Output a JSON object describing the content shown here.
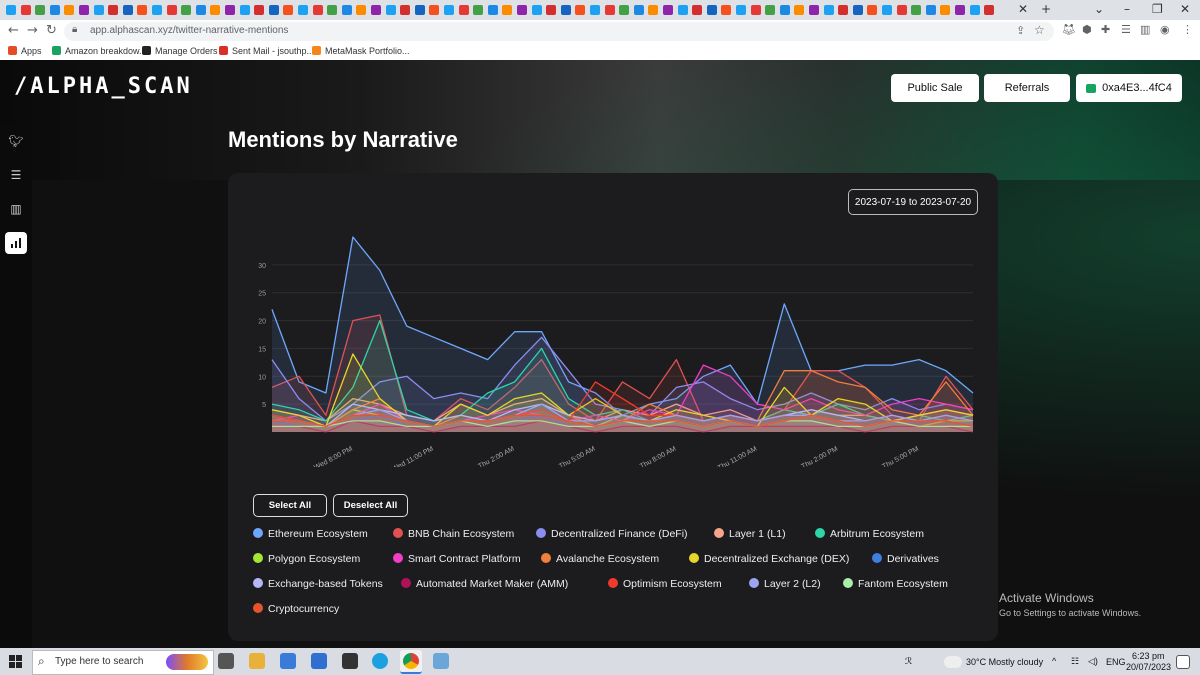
{
  "browser": {
    "url": "app.alphascan.xyz/twitter-narrative-mentions",
    "bookmarks": [
      {
        "label": "Apps",
        "color": "#e34c26"
      },
      {
        "label": "Amazon breakdow...",
        "color": "#1aa260"
      },
      {
        "label": "Manage Orders",
        "color": "#222222"
      },
      {
        "label": "Sent Mail - jsouthp...",
        "color": "#d93025"
      },
      {
        "label": "MetaMask Portfolio...",
        "color": "#f6851b"
      }
    ]
  },
  "header": {
    "logo": "/ALPHA_SCAN",
    "buttons": {
      "public_sale": "Public Sale",
      "referrals": "Referrals",
      "wallet": "0xa4E3...4fC4"
    }
  },
  "sidebar": {
    "icons": [
      "twitter-icon",
      "list-icon",
      "columns-icon",
      "bar-chart-icon"
    ]
  },
  "main": {
    "title": "Mentions by Narrative",
    "date_range": "2023-07-19 to 2023-07-20",
    "select_all": "Select All",
    "deselect_all": "Deselect All"
  },
  "chart_data": {
    "type": "area",
    "x": [
      "Wed 5:00 PM",
      "Wed 6:00 PM",
      "Wed 7:00 PM",
      "Wed 8:00 PM",
      "Wed 9:00 PM",
      "Wed 10:00 PM",
      "Wed 11:00 PM",
      "Thu 12:00 AM",
      "Thu 1:00 AM",
      "Thu 2:00 AM",
      "Thu 3:00 AM",
      "Thu 4:00 AM",
      "Thu 5:00 AM",
      "Thu 6:00 AM",
      "Thu 7:00 AM",
      "Thu 8:00 AM",
      "Thu 9:00 AM",
      "Thu 10:00 AM",
      "Thu 11:00 AM",
      "Thu 12:00 PM",
      "Thu 1:00 PM",
      "Thu 2:00 PM",
      "Thu 3:00 PM",
      "Thu 4:00 PM",
      "Thu 5:00 PM",
      "Thu 6:00 PM",
      "Thu 7:00 PM"
    ],
    "x_ticks": [
      "Wed 8:00 PM",
      "Wed 11:00 PM",
      "Thu 2:00 AM",
      "Thu 5:00 AM",
      "Thu 8:00 AM",
      "Thu 11:00 AM",
      "Thu 2:00 PM",
      "Thu 5:00 PM"
    ],
    "y_ticks": [
      5,
      10,
      15,
      20,
      25,
      30
    ],
    "ylim": [
      0,
      35
    ],
    "grid": true,
    "series": [
      {
        "name": "Ethereum Ecosystem",
        "color": "#6ea8fe",
        "values": [
          22,
          9,
          7,
          35,
          29,
          19,
          17,
          15,
          13,
          18,
          18,
          9,
          7,
          3,
          5,
          6,
          10,
          12,
          5,
          23,
          11,
          11,
          12,
          12,
          13,
          11,
          7
        ]
      },
      {
        "name": "BNB Chain Ecosystem",
        "color": "#e05252",
        "values": [
          8,
          10,
          3,
          20,
          21,
          3,
          2,
          6,
          4,
          8,
          13,
          5,
          2,
          9,
          6,
          13,
          2,
          3,
          2,
          4,
          11,
          11,
          8,
          3,
          2,
          10,
          4
        ]
      },
      {
        "name": "Decentralized Finance (DeFi)",
        "color": "#8b8ef0",
        "values": [
          13,
          6,
          2,
          5,
          9,
          10,
          6,
          7,
          6,
          12,
          17,
          11,
          5,
          4,
          3,
          8,
          9,
          6,
          4,
          5,
          7,
          5,
          4,
          6,
          4,
          5,
          4
        ]
      },
      {
        "name": "Layer 1 (L1)",
        "color": "#f4a58a",
        "values": [
          4,
          3,
          2,
          6,
          5,
          3,
          2,
          5,
          3,
          5,
          6,
          3,
          2,
          4,
          3,
          5,
          3,
          4,
          2,
          3,
          4,
          3,
          3,
          2,
          3,
          4,
          3
        ]
      },
      {
        "name": "Arbitrum Ecosystem",
        "color": "#2fd4a8",
        "values": [
          5,
          4,
          2,
          8,
          20,
          4,
          2,
          3,
          7,
          9,
          15,
          6,
          3,
          4,
          2,
          3,
          2,
          3,
          2,
          4,
          3,
          5,
          3,
          2,
          3,
          2,
          3
        ]
      },
      {
        "name": "Polygon Ecosystem",
        "color": "#a3e635",
        "values": [
          3,
          2,
          1,
          4,
          3,
          2,
          1,
          2,
          2,
          3,
          4,
          2,
          1,
          3,
          2,
          2,
          1,
          2,
          1,
          2,
          3,
          2,
          1,
          2,
          1,
          2,
          2
        ]
      },
      {
        "name": "Smart Contract Platform",
        "color": "#f03ec6",
        "values": [
          2,
          3,
          1,
          3,
          5,
          2,
          1,
          2,
          3,
          4,
          3,
          2,
          3,
          2,
          4,
          3,
          12,
          10,
          5,
          4,
          6,
          4,
          3,
          5,
          6,
          5,
          4
        ]
      },
      {
        "name": "Avalanche Ecosystem",
        "color": "#f07f3c",
        "values": [
          3,
          2,
          1,
          4,
          6,
          2,
          1,
          3,
          2,
          3,
          5,
          3,
          1,
          2,
          5,
          3,
          2,
          3,
          2,
          11,
          11,
          9,
          8,
          4,
          3,
          9,
          3
        ]
      },
      {
        "name": "Decentralized Exchange (DEX)",
        "color": "#e6d629",
        "values": [
          4,
          3,
          1,
          14,
          6,
          2,
          1,
          5,
          3,
          6,
          7,
          3,
          6,
          3,
          2,
          4,
          3,
          2,
          1,
          8,
          3,
          6,
          5,
          2,
          3,
          4,
          3
        ]
      },
      {
        "name": "Derivatives",
        "color": "#3f7fe0",
        "values": [
          2,
          1,
          1,
          2,
          3,
          1,
          1,
          2,
          1,
          2,
          3,
          1,
          1,
          2,
          1,
          2,
          1,
          2,
          1,
          2,
          2,
          1,
          1,
          2,
          1,
          1,
          1
        ]
      },
      {
        "name": "Exchange-based Tokens",
        "color": "#b4b8f8",
        "values": [
          3,
          2,
          1,
          5,
          4,
          3,
          2,
          3,
          2,
          4,
          5,
          3,
          2,
          3,
          2,
          3,
          2,
          3,
          2,
          3,
          4,
          3,
          2,
          3,
          2,
          3,
          2
        ]
      },
      {
        "name": "Automated Market Maker (AMM)",
        "color": "#b0125a",
        "values": [
          1,
          1,
          0,
          2,
          1,
          1,
          0,
          1,
          1,
          1,
          2,
          1,
          0,
          1,
          1,
          1,
          0,
          1,
          1,
          1,
          1,
          1,
          0,
          1,
          1,
          1,
          0
        ]
      },
      {
        "name": "Optimism Ecosystem",
        "color": "#ef3b2c",
        "values": [
          3,
          2,
          1,
          3,
          4,
          2,
          1,
          2,
          2,
          3,
          4,
          2,
          9,
          6,
          3,
          3,
          2,
          3,
          2,
          3,
          3,
          2,
          2,
          3,
          2,
          3,
          2
        ]
      },
      {
        "name": "Layer 2 (L2)",
        "color": "#9da4f0",
        "values": [
          2,
          2,
          1,
          3,
          4,
          2,
          1,
          2,
          2,
          3,
          5,
          2,
          2,
          3,
          2,
          3,
          2,
          3,
          2,
          3,
          3,
          2,
          2,
          3,
          2,
          3,
          2
        ]
      },
      {
        "name": "Fantom Ecosystem",
        "color": "#a8efa8",
        "values": [
          1,
          1,
          1,
          2,
          2,
          1,
          1,
          2,
          1,
          2,
          2,
          1,
          1,
          2,
          1,
          2,
          1,
          2,
          1,
          2,
          2,
          1,
          1,
          2,
          1,
          1,
          1
        ]
      },
      {
        "name": "Cryptocurrency",
        "color": "#e8532f",
        "values": [
          2,
          2,
          1,
          3,
          3,
          2,
          1,
          2,
          2,
          3,
          3,
          2,
          1,
          2,
          2,
          2,
          1,
          2,
          1,
          2,
          3,
          2,
          1,
          2,
          2,
          2,
          1
        ]
      }
    ]
  },
  "overlay": {
    "activate_title": "Activate Windows",
    "activate_sub": "Go to Settings to activate Windows."
  },
  "taskbar": {
    "search_placeholder": "Type here to search",
    "weather": "30°C  Mostly cloudy",
    "lang": "ENG",
    "time": "6:23 pm",
    "date": "20/07/2023"
  }
}
